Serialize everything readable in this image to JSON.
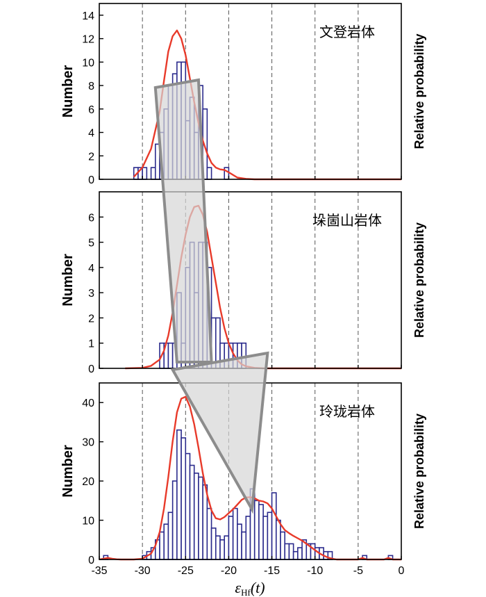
{
  "chart_data": {
    "type": "histogram_with_density",
    "x_axis": {
      "range": [
        -35,
        0
      ],
      "ticks": [
        -35,
        -30,
        -25,
        -20,
        -15,
        -10,
        -5,
        0
      ],
      "tick_labels": [
        "-35",
        "-30",
        "-25",
        "-20",
        "-15",
        "-10",
        "-5",
        "0"
      ],
      "label_main": "ε",
      "label_sub": "Hf",
      "label_suffix": "(t)",
      "dashed_gridlines": [
        -30,
        -25,
        -20,
        -15,
        -10,
        -5
      ]
    },
    "left_label": "Number",
    "right_label": "Relative probability",
    "bin_width": 0.5,
    "colors": {
      "bar_edge": "#2a2a8c",
      "curve": "#e83a2a",
      "band_fill": "#d6d6d6",
      "band_edge": "#8c8c8c"
    },
    "panels": [
      {
        "title": "文登岩体",
        "ylim": [
          0,
          15
        ],
        "yticks": [
          0,
          2,
          4,
          6,
          8,
          10,
          12,
          14
        ],
        "ytick_labels": [
          "0",
          "2",
          "4",
          "6",
          "8",
          "10",
          "12",
          "14"
        ],
        "bins_start": [
          -31.0,
          -30.5,
          -30.0,
          -29.0,
          -28.5,
          -28.0,
          -27.5,
          -27.0,
          -26.5,
          -26.0,
          -25.5,
          -25.0,
          -24.5,
          -24.0,
          -23.5,
          -23.0,
          -22.5,
          -20.5
        ],
        "counts": [
          1,
          1,
          1,
          1,
          3,
          4,
          6,
          8,
          9,
          10,
          10,
          5,
          7,
          4,
          8,
          6,
          1,
          1
        ],
        "curve_x": [
          -31.0,
          -30.0,
          -29.0,
          -28.0,
          -27.5,
          -27.0,
          -26.5,
          -26.0,
          -25.5,
          -25.0,
          -24.5,
          -24.0,
          -23.5,
          -23.0,
          -22.5,
          -22.0,
          -21.5,
          -21.0,
          -20.5,
          -20.0,
          -19.0,
          -18.0,
          -17.0,
          -16.0,
          -15.0,
          -10.0,
          -5.0,
          0.0
        ],
        "curve_y": [
          0.2,
          1.0,
          2.6,
          5.8,
          8.4,
          10.9,
          12.2,
          12.7,
          12.0,
          10.6,
          8.6,
          6.6,
          4.8,
          3.3,
          2.2,
          1.4,
          1.0,
          0.85,
          0.8,
          0.6,
          0.15,
          0.04,
          0.0,
          0.0,
          0.0,
          0.0,
          0.0,
          0.0
        ]
      },
      {
        "title": "垛崮山岩体",
        "ylim": [
          0,
          7
        ],
        "yticks": [
          0,
          1,
          2,
          3,
          4,
          5,
          6
        ],
        "ytick_labels": [
          "0",
          "1",
          "2",
          "3",
          "4",
          "5",
          "6"
        ],
        "bins_start": [
          -28.0,
          -27.5,
          -27.0,
          -26.5,
          -26.0,
          -25.5,
          -25.0,
          -24.5,
          -24.0,
          -23.5,
          -23.0,
          -22.5,
          -22.0,
          -21.5,
          -21.0,
          -20.5,
          -20.0,
          -19.5,
          -19.0,
          -18.5
        ],
        "counts": [
          1,
          1,
          1,
          1,
          3,
          1,
          4,
          5,
          3,
          5,
          5,
          4,
          2,
          2,
          1,
          1,
          1,
          1,
          1,
          1
        ],
        "curve_x": [
          -32.0,
          -30.0,
          -29.0,
          -28.0,
          -27.5,
          -27.0,
          -26.5,
          -26.0,
          -25.5,
          -25.0,
          -24.5,
          -24.0,
          -23.5,
          -23.0,
          -22.5,
          -22.0,
          -21.5,
          -21.0,
          -20.5,
          -20.0,
          -19.5,
          -19.0,
          -18.5,
          -18.0,
          -17.0,
          -16.0,
          -15.0,
          -14.0,
          -10.0,
          -5.0,
          0.0
        ],
        "curve_y": [
          0.0,
          0.02,
          0.1,
          0.35,
          0.7,
          1.3,
          2.2,
          3.3,
          4.4,
          5.3,
          6.0,
          6.4,
          6.45,
          6.1,
          5.4,
          4.4,
          3.4,
          2.4,
          1.6,
          1.0,
          0.6,
          0.32,
          0.16,
          0.08,
          0.02,
          0.0,
          0.0,
          0.0,
          0.0,
          0.0,
          0.0
        ]
      },
      {
        "title": "玲珑岩体",
        "ylim": [
          0,
          45
        ],
        "yticks": [
          0,
          10,
          20,
          30,
          40
        ],
        "ytick_labels": [
          "0",
          "10",
          "20",
          "30",
          "40"
        ],
        "bins_start": [
          -34.5,
          -30.0,
          -29.5,
          -29.0,
          -28.5,
          -28.0,
          -27.5,
          -27.0,
          -26.5,
          -26.0,
          -25.5,
          -25.0,
          -24.5,
          -24.0,
          -23.5,
          -23.0,
          -22.5,
          -22.0,
          -21.5,
          -21.0,
          -20.5,
          -20.0,
          -19.5,
          -19.0,
          -18.5,
          -18.0,
          -17.5,
          -17.0,
          -16.5,
          -16.0,
          -15.5,
          -15.0,
          -14.5,
          -14.0,
          -13.5,
          -13.0,
          -12.5,
          -12.0,
          -11.5,
          -11.0,
          -10.5,
          -10.0,
          -9.5,
          -9.0,
          -8.5,
          -4.5,
          -1.5
        ],
        "counts": [
          1,
          1,
          2,
          3,
          5,
          7,
          9,
          12,
          20,
          33,
          31,
          27,
          24,
          22,
          21,
          19,
          13,
          8,
          6,
          5,
          6,
          11,
          13,
          9,
          7,
          11,
          18,
          15,
          14,
          11,
          12,
          17,
          10,
          7,
          4,
          4,
          2,
          3,
          5,
          4,
          4,
          3,
          3,
          2,
          2,
          1,
          1
        ],
        "curve_x": [
          -35.0,
          -34.5,
          -34.0,
          -33.5,
          -33.0,
          -32.5,
          -32.0,
          -31.0,
          -30.0,
          -29.0,
          -28.5,
          -28.0,
          -27.5,
          -27.0,
          -26.5,
          -26.0,
          -25.5,
          -25.0,
          -24.5,
          -24.0,
          -23.5,
          -23.0,
          -22.5,
          -22.0,
          -21.5,
          -21.0,
          -20.5,
          -20.0,
          -19.5,
          -19.0,
          -18.5,
          -18.0,
          -17.5,
          -17.0,
          -16.5,
          -16.0,
          -15.5,
          -15.0,
          -14.5,
          -14.0,
          -13.5,
          -13.0,
          -12.5,
          -12.0,
          -11.5,
          -11.0,
          -10.5,
          -10.0,
          -9.5,
          -9.0,
          -8.5,
          -8.0,
          -7.5,
          -7.0,
          -6.0,
          -5.0,
          -4.5,
          -4.0,
          -3.0,
          -2.0,
          -1.5,
          -1.0,
          0.0
        ],
        "curve_y": [
          0.0,
          0.2,
          0.4,
          0.2,
          0.05,
          0.0,
          0.0,
          0.0,
          0.2,
          1.5,
          3.5,
          7.0,
          13.0,
          21.0,
          30.0,
          37.5,
          41.0,
          41.5,
          39.0,
          34.5,
          28.5,
          22.0,
          16.5,
          12.5,
          10.5,
          10.2,
          10.8,
          11.8,
          12.8,
          14.0,
          15.2,
          15.8,
          15.9,
          15.6,
          15.0,
          14.8,
          14.3,
          13.0,
          11.0,
          9.0,
          7.5,
          6.7,
          6.0,
          5.4,
          4.8,
          4.0,
          3.2,
          2.4,
          1.6,
          1.0,
          0.5,
          0.2,
          0.0,
          0.0,
          0.0,
          0.0,
          0.4,
          0.0,
          0.0,
          0.0,
          0.4,
          0.0,
          0.0
        ]
      }
    ]
  }
}
